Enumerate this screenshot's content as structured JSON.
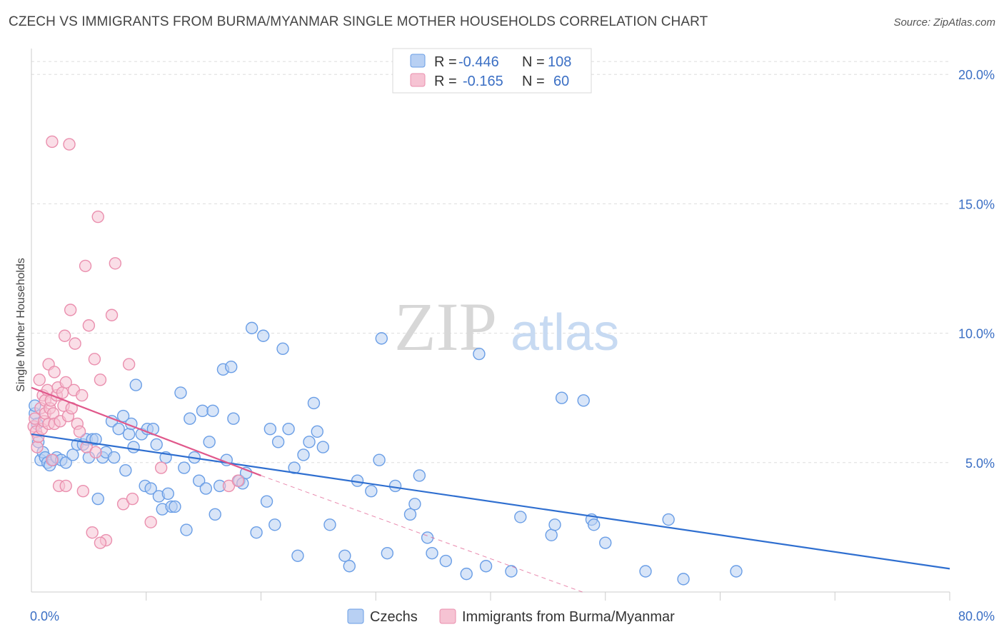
{
  "chart_data": {
    "type": "scatter",
    "title": "CZECH VS IMMIGRANTS FROM BURMA/MYANMAR SINGLE MOTHER HOUSEHOLDS CORRELATION CHART",
    "source": "Source: ZipAtlas.com",
    "ylabel": "Single Mother Households",
    "xlabel": "",
    "xlim": [
      0,
      80
    ],
    "ylim": [
      0,
      21
    ],
    "x_tick_labels": [
      {
        "value": 0,
        "label": "0.0%"
      },
      {
        "value": 80,
        "label": "80.0%"
      }
    ],
    "y_tick_labels": [
      {
        "value": 5,
        "label": "5.0%"
      },
      {
        "value": 10,
        "label": "10.0%"
      },
      {
        "value": 15,
        "label": "15.0%"
      },
      {
        "value": 20,
        "label": "20.0%"
      }
    ],
    "watermark": {
      "zip": "ZIP",
      "atlas": "atlas"
    },
    "stats_legend": [
      {
        "r_label": "R =",
        "r_value": "-0.446",
        "n_label": "N =",
        "n_value": "108"
      },
      {
        "r_label": "R =",
        "r_value": "-0.165",
        "n_label": "N =",
        "n_value": "60"
      }
    ],
    "series": [
      {
        "name": "Czechs",
        "color": "#6a9ee6",
        "fill": "#b8d0f3",
        "line_color": "#2f6fd0",
        "trend": {
          "x": [
            0,
            80
          ],
          "y": [
            6.1,
            0.9
          ]
        },
        "points": [
          [
            0.3,
            6.9
          ],
          [
            0.3,
            7.2
          ],
          [
            0.5,
            6.5
          ],
          [
            0.6,
            5.8
          ],
          [
            0.8,
            5.1
          ],
          [
            1.0,
            5.4
          ],
          [
            1.2,
            5.2
          ],
          [
            1.4,
            5.0
          ],
          [
            1.6,
            4.9
          ],
          [
            1.9,
            5.1
          ],
          [
            2.2,
            5.2
          ],
          [
            2.6,
            5.1
          ],
          [
            3.0,
            5.0
          ],
          [
            3.6,
            5.3
          ],
          [
            4.0,
            5.7
          ],
          [
            4.5,
            5.7
          ],
          [
            4.8,
            5.9
          ],
          [
            5.0,
            5.2
          ],
          [
            5.3,
            5.9
          ],
          [
            5.6,
            5.9
          ],
          [
            5.8,
            3.6
          ],
          [
            6.2,
            5.2
          ],
          [
            6.5,
            5.4
          ],
          [
            7.0,
            6.6
          ],
          [
            7.2,
            5.2
          ],
          [
            7.6,
            6.3
          ],
          [
            8.0,
            6.8
          ],
          [
            8.2,
            4.7
          ],
          [
            8.5,
            6.1
          ],
          [
            8.7,
            6.5
          ],
          [
            8.9,
            5.6
          ],
          [
            9.1,
            8.0
          ],
          [
            9.6,
            6.1
          ],
          [
            9.9,
            4.1
          ],
          [
            10.1,
            6.3
          ],
          [
            10.4,
            4.0
          ],
          [
            10.6,
            6.3
          ],
          [
            10.9,
            5.7
          ],
          [
            11.1,
            3.7
          ],
          [
            11.4,
            3.2
          ],
          [
            11.7,
            5.2
          ],
          [
            11.9,
            3.8
          ],
          [
            12.2,
            3.3
          ],
          [
            12.5,
            3.3
          ],
          [
            13.0,
            7.7
          ],
          [
            13.3,
            4.8
          ],
          [
            13.5,
            2.4
          ],
          [
            13.8,
            6.7
          ],
          [
            14.2,
            5.2
          ],
          [
            14.6,
            4.3
          ],
          [
            14.9,
            7.0
          ],
          [
            15.2,
            4.0
          ],
          [
            15.5,
            5.8
          ],
          [
            15.8,
            7.0
          ],
          [
            16.0,
            3.0
          ],
          [
            16.4,
            4.1
          ],
          [
            16.7,
            8.6
          ],
          [
            17.0,
            5.1
          ],
          [
            17.4,
            8.7
          ],
          [
            17.6,
            6.7
          ],
          [
            18.1,
            4.3
          ],
          [
            18.4,
            4.2
          ],
          [
            18.7,
            4.6
          ],
          [
            19.2,
            10.2
          ],
          [
            19.6,
            2.3
          ],
          [
            20.2,
            9.9
          ],
          [
            20.5,
            3.5
          ],
          [
            20.8,
            6.3
          ],
          [
            21.2,
            2.6
          ],
          [
            21.5,
            5.8
          ],
          [
            21.9,
            9.4
          ],
          [
            22.4,
            6.3
          ],
          [
            22.9,
            4.8
          ],
          [
            23.2,
            1.4
          ],
          [
            23.7,
            5.3
          ],
          [
            24.2,
            5.8
          ],
          [
            24.6,
            7.3
          ],
          [
            24.9,
            6.2
          ],
          [
            25.4,
            5.6
          ],
          [
            26.0,
            2.6
          ],
          [
            27.3,
            1.4
          ],
          [
            27.7,
            1.0
          ],
          [
            28.4,
            4.3
          ],
          [
            29.6,
            3.9
          ],
          [
            30.3,
            5.1
          ],
          [
            30.5,
            9.8
          ],
          [
            31.0,
            1.5
          ],
          [
            31.7,
            4.1
          ],
          [
            33.0,
            3.0
          ],
          [
            33.4,
            3.4
          ],
          [
            33.8,
            4.5
          ],
          [
            34.5,
            2.1
          ],
          [
            34.9,
            1.5
          ],
          [
            36.1,
            1.2
          ],
          [
            37.9,
            0.7
          ],
          [
            39.0,
            9.2
          ],
          [
            39.6,
            1.0
          ],
          [
            41.8,
            0.8
          ],
          [
            42.6,
            2.9
          ],
          [
            45.3,
            2.2
          ],
          [
            45.6,
            2.6
          ],
          [
            46.2,
            7.5
          ],
          [
            48.1,
            7.4
          ],
          [
            48.8,
            2.8
          ],
          [
            49.0,
            2.6
          ],
          [
            50.0,
            1.9
          ],
          [
            53.5,
            0.8
          ],
          [
            55.5,
            2.8
          ],
          [
            56.8,
            0.5
          ],
          [
            61.4,
            0.8
          ]
        ]
      },
      {
        "name": "Immigrants from Burma/Myanmar",
        "color": "#ea8fae",
        "fill": "#f6c3d3",
        "line_color": "#e0588b",
        "trend": {
          "x": [
            0,
            20
          ],
          "y": [
            7.9,
            4.5
          ]
        },
        "trend_extension": {
          "x": [
            20,
            48
          ],
          "y": [
            4.5,
            0
          ]
        },
        "points": [
          [
            0.2,
            6.4
          ],
          [
            0.3,
            6.7
          ],
          [
            0.4,
            6.2
          ],
          [
            0.5,
            5.6
          ],
          [
            0.6,
            6.0
          ],
          [
            0.7,
            8.2
          ],
          [
            0.8,
            7.1
          ],
          [
            0.9,
            6.3
          ],
          [
            1.0,
            7.6
          ],
          [
            1.1,
            6.6
          ],
          [
            1.2,
            6.9
          ],
          [
            1.2,
            7.4
          ],
          [
            1.4,
            7.8
          ],
          [
            1.5,
            6.5
          ],
          [
            1.5,
            8.8
          ],
          [
            1.6,
            7.1
          ],
          [
            1.7,
            7.4
          ],
          [
            1.8,
            5.1
          ],
          [
            1.9,
            6.9
          ],
          [
            2.0,
            6.5
          ],
          [
            2.0,
            8.5
          ],
          [
            2.2,
            7.6
          ],
          [
            2.3,
            7.9
          ],
          [
            2.4,
            4.1
          ],
          [
            2.5,
            6.6
          ],
          [
            2.7,
            7.7
          ],
          [
            2.8,
            7.2
          ],
          [
            2.9,
            9.9
          ],
          [
            3.0,
            8.1
          ],
          [
            3.0,
            4.1
          ],
          [
            3.2,
            6.8
          ],
          [
            3.3,
            17.3
          ],
          [
            3.4,
            10.9
          ],
          [
            3.5,
            7.1
          ],
          [
            3.7,
            7.8
          ],
          [
            3.8,
            9.6
          ],
          [
            4.0,
            6.5
          ],
          [
            4.2,
            6.2
          ],
          [
            4.4,
            7.6
          ],
          [
            4.5,
            3.9
          ],
          [
            4.7,
            12.6
          ],
          [
            4.8,
            5.6
          ],
          [
            5.0,
            10.3
          ],
          [
            5.3,
            2.3
          ],
          [
            5.5,
            9.0
          ],
          [
            5.6,
            5.4
          ],
          [
            5.8,
            14.5
          ],
          [
            6.0,
            8.2
          ],
          [
            6.5,
            2.0
          ],
          [
            7.0,
            10.7
          ],
          [
            7.3,
            12.7
          ],
          [
            8.0,
            3.4
          ],
          [
            8.5,
            8.8
          ],
          [
            8.8,
            3.6
          ],
          [
            10.4,
            2.7
          ],
          [
            11.3,
            4.8
          ],
          [
            17.2,
            4.1
          ],
          [
            18.0,
            4.3
          ],
          [
            1.8,
            17.4
          ],
          [
            6.0,
            1.9
          ]
        ]
      }
    ]
  }
}
